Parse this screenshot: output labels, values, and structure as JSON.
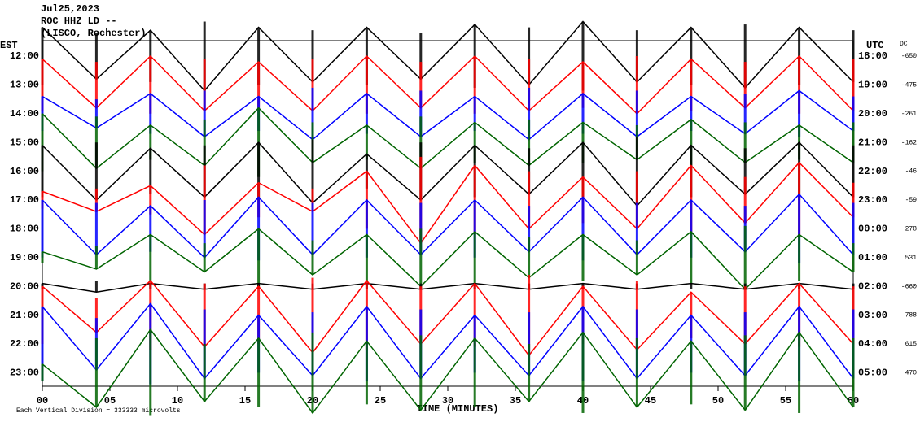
{
  "chart_data": {
    "type": "helicorder",
    "title_lines": [
      "Jul25,2023",
      "ROC HHZ LD --",
      "(LISCO, Rochester)"
    ],
    "left_axis_label": "EST",
    "right_axis_label": "UTC",
    "dc_label": "DC",
    "x_label": "TIME (MINUTES)",
    "footer": "Each Vertical Division = 333333 microvolts",
    "xlim": [
      0,
      60
    ],
    "xticks": [
      {
        "value": 0,
        "label": "00"
      },
      {
        "value": 5,
        "label": "05"
      },
      10,
      15,
      20,
      25,
      30,
      35,
      40,
      45,
      50,
      55,
      60
    ],
    "x": [
      0,
      4,
      8,
      12,
      16,
      20,
      24,
      28,
      32,
      36,
      40,
      44,
      48,
      52,
      56,
      60
    ],
    "rows": [
      {
        "est": "12:00",
        "utc": "18:00",
        "dc": -650,
        "color": "#000000",
        "amplitude": [
          1.0,
          0.8,
          0.9,
          1.2,
          1.0,
          0.9,
          1.0,
          0.8,
          1.1,
          1.0,
          1.2,
          0.9,
          1.0,
          1.1,
          1.0,
          0.9
        ]
      },
      {
        "est": "13:00",
        "utc": "19:00",
        "dc": -475,
        "color": "#ff0000",
        "amplitude": [
          0.9,
          0.8,
          1.0,
          0.9,
          0.8,
          0.9,
          1.0,
          0.8,
          1.0,
          0.9,
          0.8,
          1.0,
          0.9,
          0.8,
          1.0,
          0.9
        ]
      },
      {
        "est": "14:00",
        "utc": "20:00",
        "dc": -261,
        "color": "#0000ff",
        "amplitude": [
          0.6,
          0.5,
          0.7,
          0.8,
          0.6,
          0.9,
          0.7,
          0.8,
          0.6,
          0.9,
          0.7,
          0.8,
          0.6,
          0.7,
          0.8,
          0.6
        ]
      },
      {
        "est": "15:00",
        "utc": "21:00",
        "dc": -162,
        "color": "#006400",
        "amplitude": [
          1.0,
          0.9,
          0.6,
          0.8,
          1.2,
          0.7,
          0.6,
          0.9,
          0.7,
          0.8,
          0.7,
          0.6,
          0.8,
          0.7,
          0.6,
          0.7
        ]
      },
      {
        "est": "16:00",
        "utc": "22:00",
        "dc": -46,
        "color": "#000000",
        "amplitude": [
          0.9,
          1.0,
          0.8,
          0.9,
          1.0,
          1.1,
          0.6,
          1.0,
          0.9,
          0.8,
          1.0,
          1.2,
          0.9,
          0.8,
          1.0,
          0.9
        ]
      },
      {
        "est": "17:00",
        "utc": "23:00",
        "dc": -59,
        "color": "#ff0000",
        "amplitude": [
          0.3,
          0.4,
          0.5,
          1.2,
          0.6,
          0.4,
          1.0,
          1.5,
          1.2,
          1.0,
          0.8,
          1.0,
          1.2,
          0.8,
          1.3,
          0.6
        ]
      },
      {
        "est": "18:00",
        "utc": "00:00",
        "dc": 278,
        "color": "#0000ff",
        "amplitude": [
          1.0,
          0.9,
          0.8,
          1.0,
          1.1,
          0.9,
          1.0,
          0.9,
          1.0,
          0.8,
          1.1,
          0.9,
          1.0,
          0.8,
          1.2,
          0.9
        ]
      },
      {
        "est": "19:00",
        "utc": "01:00",
        "dc": 531,
        "color": "#006400",
        "amplitude": [
          0.2,
          0.4,
          0.8,
          0.5,
          1.0,
          0.6,
          0.8,
          1.0,
          0.9,
          0.7,
          0.8,
          0.6,
          0.9,
          1.1,
          0.8,
          0.5
        ]
      },
      {
        "est": "20:00",
        "utc": "02:00",
        "dc": -660,
        "color": "#000000",
        "amplitude": [
          0.1,
          0.2,
          0.1,
          0.1,
          0.1,
          0.1,
          0.1,
          0.1,
          0.1,
          0.1,
          0.1,
          0.1,
          0.1,
          0.1,
          0.1,
          0.1
        ]
      },
      {
        "est": "21:00",
        "utc": "03:00",
        "dc": 788,
        "color": "#ff0000",
        "amplitude": [
          1.0,
          0.6,
          1.2,
          1.1,
          1.0,
          1.3,
          1.2,
          1.0,
          1.1,
          1.4,
          1.0,
          1.2,
          0.8,
          1.0,
          1.1,
          1.0
        ]
      },
      {
        "est": "22:00",
        "utc": "04:00",
        "dc": 615,
        "color": "#0000ff",
        "amplitude": [
          1.3,
          0.9,
          1.4,
          1.2,
          1.0,
          1.1,
          1.3,
          1.2,
          1.0,
          1.1,
          1.3,
          1.2,
          1.0,
          1.1,
          1.3,
          1.2
        ]
      },
      {
        "est": "23:00",
        "utc": "05:00",
        "dc": 470,
        "color": "#006400",
        "amplitude": [
          0.3,
          1.2,
          1.5,
          1.0,
          1.2,
          1.4,
          1.1,
          1.3,
          1.2,
          1.0,
          1.4,
          1.2,
          1.1,
          1.3,
          1.4,
          1.2
        ]
      }
    ]
  }
}
